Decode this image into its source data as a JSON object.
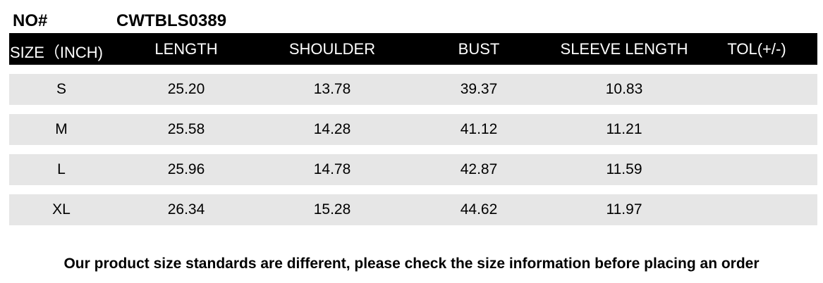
{
  "header": {
    "no_label": "NO#",
    "no_value": "CWTBLS0389"
  },
  "table": {
    "columns": [
      "SIZE（INCH)",
      "LENGTH",
      "SHOULDER",
      "BUST",
      "SLEEVE LENGTH",
      "TOL(+/-)"
    ],
    "rows": [
      [
        "S",
        "25.20",
        "13.78",
        "39.37",
        "10.83",
        ""
      ],
      [
        "M",
        "25.58",
        "14.28",
        "41.12",
        "11.21",
        ""
      ],
      [
        "L",
        "25.96",
        "14.78",
        "42.87",
        "11.59",
        ""
      ],
      [
        "XL",
        "26.34",
        "15.28",
        "44.62",
        "11.97",
        ""
      ]
    ]
  },
  "footer": {
    "note": "Our product size standards are different, please check the size information before placing an order"
  },
  "colors": {
    "header_bg": "#000000",
    "row_bg": "#e6e6e6"
  }
}
